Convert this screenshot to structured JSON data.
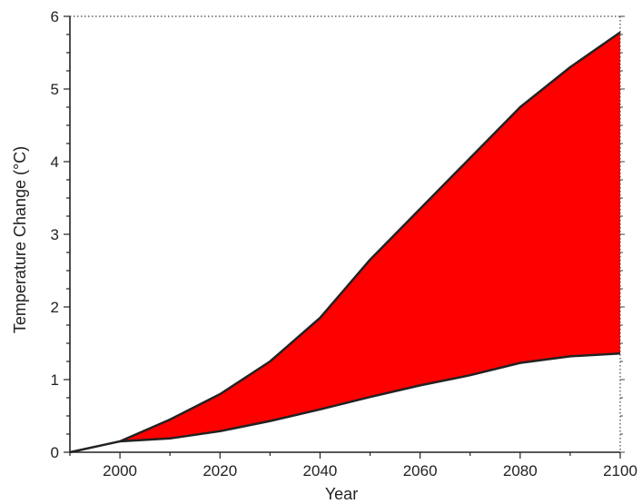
{
  "chart_data": {
    "type": "area",
    "title": "",
    "xlabel": "Year",
    "ylabel": "Temperature Change (°C)",
    "xlim": [
      1990,
      2100
    ],
    "ylim": [
      0,
      6
    ],
    "x_ticks": [
      2000,
      2020,
      2040,
      2060,
      2080,
      2100
    ],
    "x_tick_labels": [
      "2000",
      "2020",
      "2040",
      "2060",
      "2080",
      "2100"
    ],
    "y_ticks": [
      0,
      1,
      2,
      3,
      4,
      5,
      6
    ],
    "y_tick_labels": [
      "0",
      "1",
      "2",
      "3",
      "4",
      "5",
      "6"
    ],
    "grid": false,
    "fill_color": "#ff0000",
    "line_color": "#222222",
    "historical": {
      "x": [
        1990,
        2000
      ],
      "y": [
        0.0,
        0.15
      ]
    },
    "range": {
      "x": [
        2000,
        2010,
        2020,
        2030,
        2040,
        2050,
        2060,
        2070,
        2080,
        2090,
        2100
      ],
      "upper": [
        0.15,
        0.45,
        0.8,
        1.25,
        1.85,
        2.65,
        3.35,
        4.05,
        4.75,
        5.3,
        5.78
      ],
      "lower": [
        0.15,
        0.19,
        0.29,
        0.43,
        0.59,
        0.76,
        0.92,
        1.06,
        1.23,
        1.32,
        1.36
      ]
    }
  }
}
